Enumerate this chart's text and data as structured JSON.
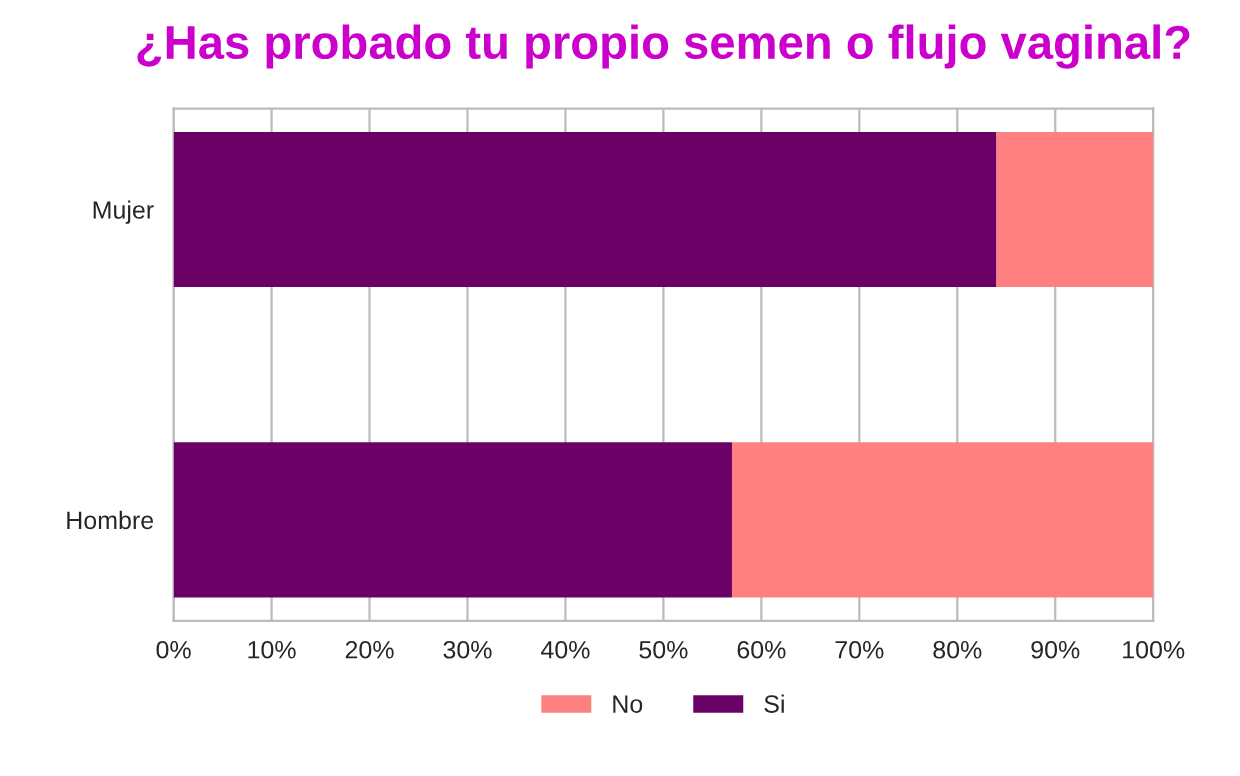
{
  "chart_data": {
    "type": "bar",
    "orientation": "horizontal",
    "stacked": true,
    "title": "¿Has probado tu propio semen o flujo vaginal?",
    "categories": [
      "Mujer",
      "Hombre"
    ],
    "series": [
      {
        "name": "Si",
        "color": "#6b0066",
        "values": [
          84,
          57
        ]
      },
      {
        "name": "No",
        "color": "#ff8080",
        "values": [
          16,
          43
        ]
      }
    ],
    "xlim": [
      0,
      100
    ],
    "xticks": [
      {
        "value": 0,
        "label": "0%"
      },
      {
        "value": 10,
        "label": "10%"
      },
      {
        "value": 20,
        "label": "20%"
      },
      {
        "value": 30,
        "label": "30%"
      },
      {
        "value": 40,
        "label": "40%"
      },
      {
        "value": 50,
        "label": "50%"
      },
      {
        "value": 60,
        "label": "60%"
      },
      {
        "value": 70,
        "label": "70%"
      },
      {
        "value": 80,
        "label": "80%"
      },
      {
        "value": 90,
        "label": "90%"
      },
      {
        "value": 100,
        "label": "100%"
      }
    ],
    "grid": "x",
    "legend": "bottom"
  }
}
